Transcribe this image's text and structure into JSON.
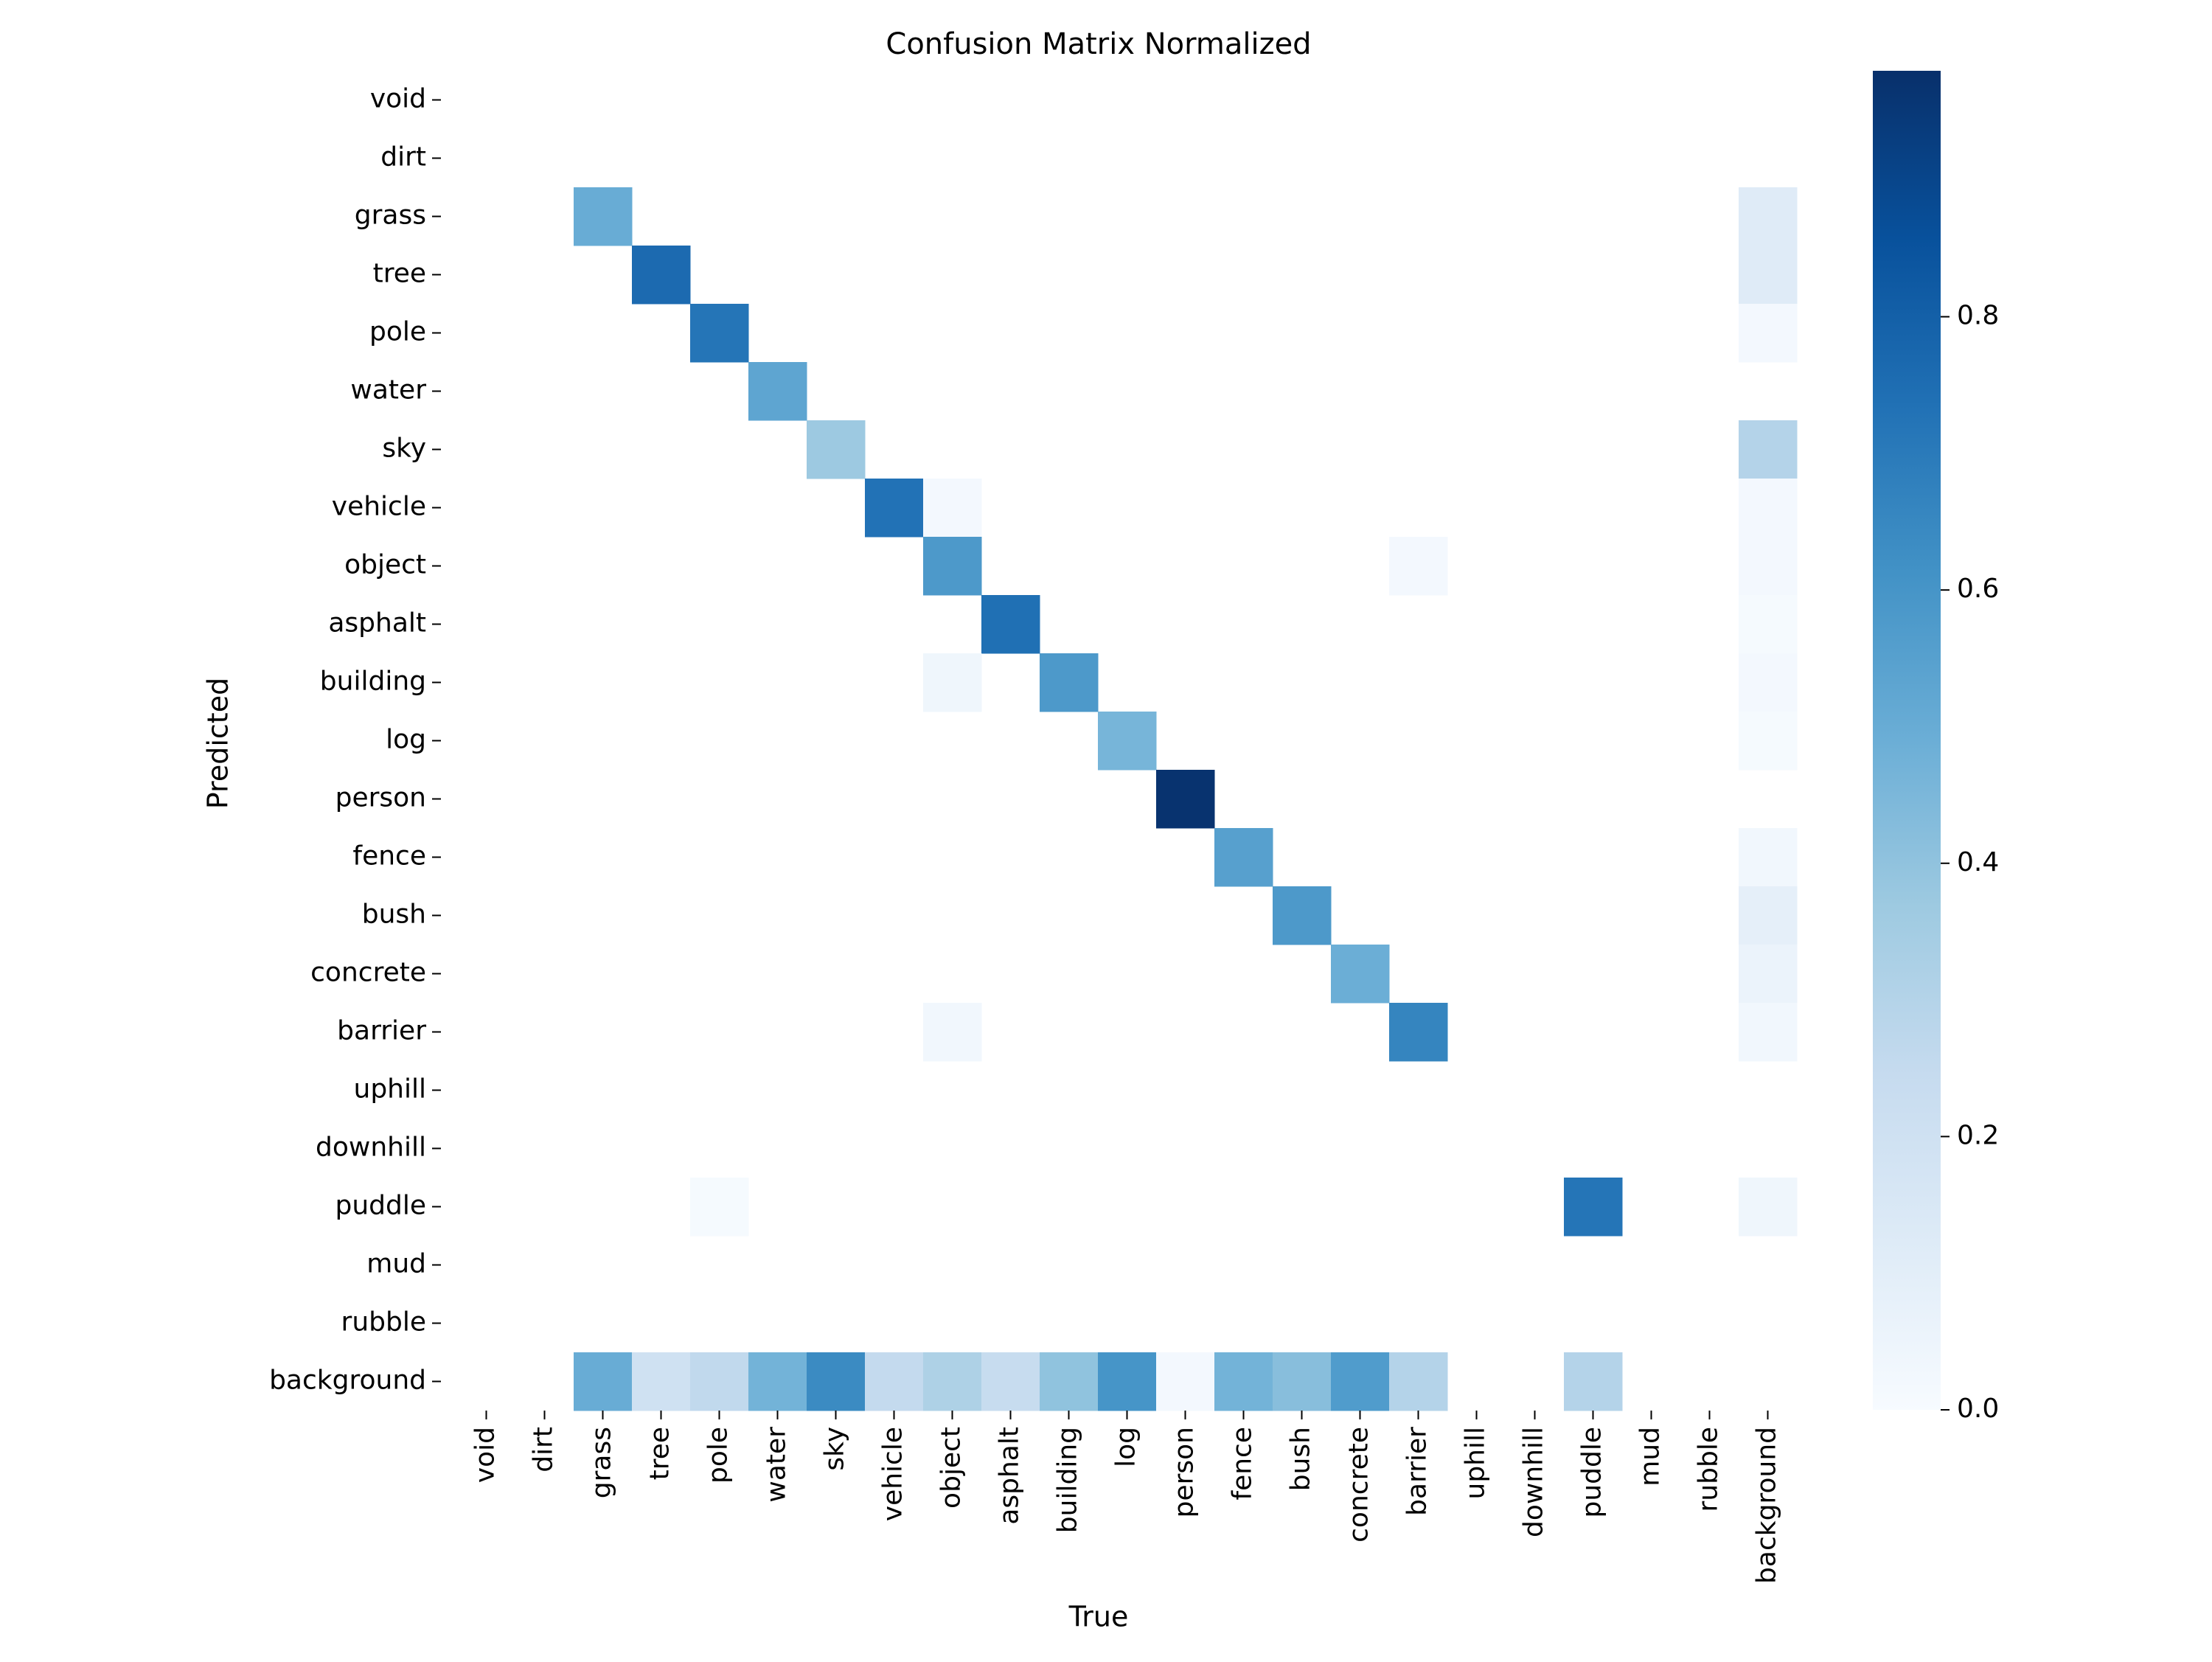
{
  "chart_data": {
    "type": "heatmap",
    "title": "Confusion Matrix Normalized",
    "xlabel": "True",
    "ylabel": "Predicted",
    "x_categories": [
      "void",
      "dirt",
      "grass",
      "tree",
      "pole",
      "water",
      "sky",
      "vehicle",
      "object",
      "asphalt",
      "building",
      "log",
      "person",
      "fence",
      "bush",
      "concrete",
      "barrier",
      "uphill",
      "downhill",
      "puddle",
      "mud",
      "rubble",
      "background"
    ],
    "y_categories": [
      "void",
      "dirt",
      "grass",
      "tree",
      "pole",
      "water",
      "sky",
      "vehicle",
      "object",
      "asphalt",
      "building",
      "log",
      "person",
      "fence",
      "bush",
      "concrete",
      "barrier",
      "uphill",
      "downhill",
      "puddle",
      "mud",
      "rubble",
      "background"
    ],
    "value_range": [
      0,
      0.98
    ],
    "colormap": "Blues",
    "colorbar_ticks": [
      {
        "value": 0.0,
        "label": "0.0"
      },
      {
        "value": 0.2,
        "label": "0.2"
      },
      {
        "value": 0.4,
        "label": "0.4"
      },
      {
        "value": 0.6,
        "label": "0.6"
      },
      {
        "value": 0.8,
        "label": "0.8"
      }
    ],
    "cells": [
      {
        "row": "grass",
        "col": "grass",
        "value": 0.5
      },
      {
        "row": "grass",
        "col": "background",
        "value": 0.12
      },
      {
        "row": "tree",
        "col": "tree",
        "value": 0.76
      },
      {
        "row": "tree",
        "col": "background",
        "value": 0.12
      },
      {
        "row": "pole",
        "col": "pole",
        "value": 0.72
      },
      {
        "row": "pole",
        "col": "background",
        "value": 0.02
      },
      {
        "row": "water",
        "col": "water",
        "value": 0.53
      },
      {
        "row": "sky",
        "col": "sky",
        "value": 0.37
      },
      {
        "row": "sky",
        "col": "background",
        "value": 0.3
      },
      {
        "row": "vehicle",
        "col": "vehicle",
        "value": 0.73
      },
      {
        "row": "vehicle",
        "col": "object",
        "value": 0.02
      },
      {
        "row": "vehicle",
        "col": "background",
        "value": 0.02
      },
      {
        "row": "object",
        "col": "object",
        "value": 0.58
      },
      {
        "row": "object",
        "col": "barrier",
        "value": 0.02
      },
      {
        "row": "object",
        "col": "background",
        "value": 0.02
      },
      {
        "row": "asphalt",
        "col": "asphalt",
        "value": 0.74
      },
      {
        "row": "asphalt",
        "col": "background",
        "value": 0.01
      },
      {
        "row": "building",
        "col": "object",
        "value": 0.04
      },
      {
        "row": "building",
        "col": "building",
        "value": 0.58
      },
      {
        "row": "building",
        "col": "background",
        "value": 0.02
      },
      {
        "row": "log",
        "col": "log",
        "value": 0.46
      },
      {
        "row": "log",
        "col": "background",
        "value": 0.01
      },
      {
        "row": "person",
        "col": "person",
        "value": 0.97
      },
      {
        "row": "fence",
        "col": "fence",
        "value": 0.55
      },
      {
        "row": "fence",
        "col": "background",
        "value": 0.03
      },
      {
        "row": "bush",
        "col": "bush",
        "value": 0.58
      },
      {
        "row": "bush",
        "col": "background",
        "value": 0.09
      },
      {
        "row": "concrete",
        "col": "concrete",
        "value": 0.49
      },
      {
        "row": "concrete",
        "col": "background",
        "value": 0.06
      },
      {
        "row": "barrier",
        "col": "object",
        "value": 0.03
      },
      {
        "row": "barrier",
        "col": "barrier",
        "value": 0.66
      },
      {
        "row": "barrier",
        "col": "background",
        "value": 0.03
      },
      {
        "row": "puddle",
        "col": "pole",
        "value": 0.01
      },
      {
        "row": "puddle",
        "col": "puddle",
        "value": 0.72
      },
      {
        "row": "puddle",
        "col": "background",
        "value": 0.04
      },
      {
        "row": "background",
        "col": "grass",
        "value": 0.5
      },
      {
        "row": "background",
        "col": "tree",
        "value": 0.2
      },
      {
        "row": "background",
        "col": "pole",
        "value": 0.26
      },
      {
        "row": "background",
        "col": "water",
        "value": 0.47
      },
      {
        "row": "background",
        "col": "sky",
        "value": 0.64
      },
      {
        "row": "background",
        "col": "vehicle",
        "value": 0.25
      },
      {
        "row": "background",
        "col": "object",
        "value": 0.32
      },
      {
        "row": "background",
        "col": "asphalt",
        "value": 0.24
      },
      {
        "row": "background",
        "col": "building",
        "value": 0.4
      },
      {
        "row": "background",
        "col": "log",
        "value": 0.6
      },
      {
        "row": "background",
        "col": "person",
        "value": 0.02
      },
      {
        "row": "background",
        "col": "fence",
        "value": 0.47
      },
      {
        "row": "background",
        "col": "bush",
        "value": 0.42
      },
      {
        "row": "background",
        "col": "concrete",
        "value": 0.57
      },
      {
        "row": "background",
        "col": "barrier",
        "value": 0.3
      },
      {
        "row": "background",
        "col": "puddle",
        "value": 0.3
      }
    ]
  }
}
